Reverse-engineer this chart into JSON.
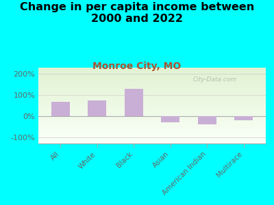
{
  "title": "Change in per capita income between\n2000 and 2022",
  "subtitle": "Monroe City, MO",
  "categories": [
    "All",
    "White",
    "Black",
    "Asian",
    "American Indian",
    "Multirace"
  ],
  "values": [
    68,
    73,
    130,
    -30,
    -38,
    -20
  ],
  "bar_color": "#c9aed6",
  "background_outer": "#00ffff",
  "title_fontsize": 11.5,
  "subtitle_fontsize": 10,
  "subtitle_color": "#aa5533",
  "tick_label_color": "#666666",
  "yticks": [
    -100,
    0,
    100,
    200
  ],
  "ylim": [
    -130,
    230
  ],
  "watermark": "City-Data.com"
}
